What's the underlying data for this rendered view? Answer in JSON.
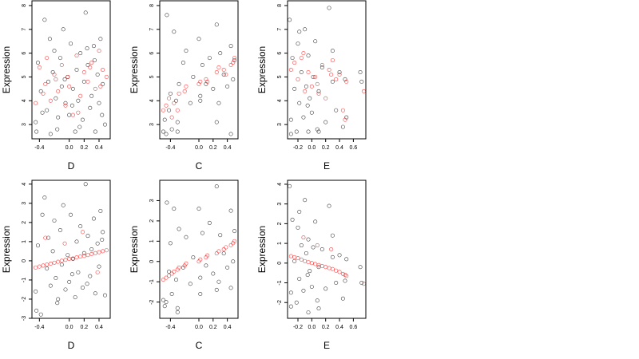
{
  "figure": {
    "title": ""
  },
  "colors": {
    "black": "#000000",
    "red": "#ff0000",
    "background": "#ffffff"
  },
  "chart_data": [
    {
      "type": "scatter",
      "xlabel": "D",
      "ylabel": "Expression",
      "xlim": [
        -0.5,
        0.55
      ],
      "ylim": [
        2.4,
        8.2
      ],
      "xticks": [
        -0.4,
        0.0,
        0.2,
        0.4
      ],
      "xtick_labels": [
        "-0.4",
        "0.0",
        "0.2",
        "0.4"
      ],
      "yticks": [
        3,
        4,
        5,
        6,
        7,
        8
      ],
      "ytick_labels": [
        "3",
        "4",
        "5",
        "6",
        "7",
        "8"
      ],
      "series": [
        {
          "color": "black",
          "x": [
            -0.45,
            -0.42,
            -0.38,
            -0.33,
            -0.3,
            -0.28,
            -0.25,
            -0.22,
            -0.2,
            -0.18,
            -0.15,
            -0.12,
            -0.1,
            -0.08,
            -0.05,
            -0.02,
            0.0,
            0.02,
            0.05,
            0.08,
            0.1,
            0.12,
            0.15,
            0.18,
            0.2,
            0.22,
            0.25,
            0.28,
            0.3,
            0.33,
            0.35,
            0.38,
            0.4,
            0.42,
            0.45,
            0.48,
            -0.44,
            -0.36,
            -0.26,
            -0.16,
            -0.06,
            0.04,
            0.14,
            0.24,
            0.34,
            0.44
          ],
          "y": [
            3.1,
            5.6,
            4.4,
            7.4,
            3.6,
            4.8,
            2.6,
            5.2,
            6.1,
            4.1,
            3.3,
            5.8,
            4.6,
            7.0,
            3.9,
            5.0,
            3.4,
            6.4,
            4.5,
            2.7,
            5.3,
            4.0,
            6.0,
            3.2,
            4.8,
            7.7,
            5.5,
            3.7,
            4.2,
            6.3,
            2.7,
            5.1,
            3.9,
            6.6,
            4.7,
            3.0,
            2.7,
            3.5,
            6.6,
            2.8,
            4.9,
            3.8,
            2.9,
            6.2,
            5.7,
            3.4
          ]
        },
        {
          "color": "red",
          "x": [
            -0.45,
            -0.4,
            -0.35,
            -0.3,
            -0.25,
            -0.2,
            -0.15,
            -0.1,
            -0.05,
            0.0,
            0.05,
            0.1,
            0.15,
            0.2,
            0.25,
            0.3,
            0.35,
            0.4,
            0.45,
            0.5,
            -0.32,
            -0.18,
            -0.02,
            0.12,
            0.28,
            0.42
          ],
          "y": [
            3.9,
            5.4,
            4.3,
            5.8,
            4.0,
            5.1,
            4.4,
            5.5,
            3.8,
            4.6,
            3.4,
            5.9,
            4.2,
            5.2,
            4.8,
            5.6,
            4.5,
            6.1,
            5.3,
            5.0,
            4.7,
            4.9,
            5.0,
            3.5,
            5.4,
            4.6
          ]
        }
      ]
    },
    {
      "type": "scatter",
      "xlabel": "C",
      "ylabel": "Expression",
      "xlim": [
        -0.55,
        0.55
      ],
      "ylim": [
        2.4,
        8.2
      ],
      "xticks": [
        -0.4,
        0.0,
        0.2,
        0.4
      ],
      "xtick_labels": [
        "-0.4",
        "0.0",
        "0.2",
        "0.4"
      ],
      "yticks": [
        3,
        4,
        5,
        6,
        7,
        8
      ],
      "ytick_labels": [
        "3",
        "4",
        "5",
        "6",
        "7",
        "8"
      ],
      "series": [
        {
          "color": "black",
          "x": [
            -0.5,
            -0.48,
            -0.45,
            -0.42,
            -0.4,
            -0.38,
            -0.35,
            -0.32,
            -0.3,
            -0.28,
            -0.22,
            -0.18,
            -0.12,
            -0.08,
            0.0,
            0.02,
            0.05,
            0.1,
            0.15,
            0.2,
            0.25,
            0.28,
            0.3,
            0.35,
            0.4,
            0.45,
            0.48,
            0.5,
            -0.46,
            -0.3,
            0.02,
            0.25,
            0.45
          ],
          "y": [
            2.7,
            3.2,
            7.6,
            3.6,
            4.3,
            2.8,
            6.9,
            4.0,
            3.1,
            4.7,
            5.6,
            6.1,
            3.9,
            5.0,
            6.6,
            4.2,
            5.5,
            4.7,
            5.8,
            4.5,
            7.2,
            3.9,
            6.0,
            5.1,
            4.6,
            6.3,
            4.9,
            5.7,
            2.6,
            2.7,
            4.0,
            3.1,
            2.6
          ]
        },
        {
          "color": "red",
          "x": [
            -0.5,
            -0.46,
            -0.42,
            -0.38,
            -0.35,
            -0.3,
            -0.28,
            -0.2,
            -0.18,
            0.0,
            0.02,
            0.1,
            0.12,
            0.25,
            0.28,
            0.35,
            0.38,
            0.45,
            0.48,
            0.5
          ],
          "y": [
            3.6,
            3.8,
            4.1,
            3.3,
            3.9,
            3.6,
            4.3,
            4.4,
            4.6,
            4.7,
            4.8,
            4.9,
            4.8,
            5.2,
            5.4,
            5.3,
            5.1,
            5.5,
            5.6,
            5.8
          ]
        }
      ]
    },
    {
      "type": "scatter",
      "xlabel": "E",
      "ylabel": "Expression",
      "xlim": [
        -0.35,
        0.78
      ],
      "ylim": [
        2.4,
        8.2
      ],
      "xticks": [
        -0.2,
        0.0,
        0.2,
        0.4,
        0.6
      ],
      "xtick_labels": [
        "-0.2",
        "0.0",
        "0.2",
        "0.4",
        "0.6"
      ],
      "yticks": [
        3,
        4,
        5,
        6,
        7,
        8
      ],
      "ytick_labels": [
        "3",
        "4",
        "5",
        "6",
        "7",
        "8"
      ],
      "series": [
        {
          "color": "black",
          "x": [
            -0.32,
            -0.3,
            -0.28,
            -0.25,
            -0.22,
            -0.2,
            -0.18,
            -0.15,
            -0.12,
            -0.1,
            -0.08,
            -0.05,
            -0.05,
            -0.03,
            0.0,
            0.02,
            0.05,
            0.08,
            0.1,
            0.15,
            0.2,
            0.25,
            0.3,
            0.35,
            0.4,
            0.45,
            0.48,
            0.5,
            -0.3,
            -0.18,
            -0.06,
            0.1,
            0.3,
            0.7,
            0.72
          ],
          "y": [
            7.4,
            3.2,
            5.8,
            4.5,
            2.7,
            6.4,
            3.9,
            5.2,
            3.3,
            7.0,
            4.6,
            2.7,
            5.9,
            4.1,
            3.5,
            5.0,
            6.5,
            2.8,
            4.4,
            5.4,
            3.1,
            7.9,
            4.8,
            3.6,
            5.2,
            2.9,
            4.9,
            3.3,
            2.6,
            6.9,
            3.8,
            2.7,
            6.1,
            5.2,
            4.8
          ]
        },
        {
          "color": "red",
          "x": [
            -0.3,
            -0.25,
            -0.2,
            -0.15,
            -0.1,
            -0.05,
            0.0,
            0.05,
            0.1,
            0.15,
            0.2,
            0.25,
            0.3,
            0.35,
            0.4,
            0.45,
            0.48,
            0.5,
            0.75,
            -0.12,
            0.08,
            0.28
          ],
          "y": [
            5.3,
            5.6,
            4.9,
            5.8,
            4.4,
            5.2,
            4.6,
            5.0,
            4.3,
            5.5,
            4.1,
            5.3,
            5.7,
            4.9,
            5.1,
            3.6,
            3.2,
            4.8,
            4.4,
            6.0,
            4.7,
            5.1
          ]
        }
      ]
    },
    {
      "type": "scatter",
      "xlabel": "D",
      "ylabel": "Expression",
      "xlim": [
        -0.5,
        0.55
      ],
      "ylim": [
        -3.0,
        4.2
      ],
      "xticks": [
        -0.4,
        0.0,
        0.2,
        0.4
      ],
      "xtick_labels": [
        "-0.4",
        "0.0",
        "0.2",
        "0.4"
      ],
      "yticks": [
        -3,
        -2,
        -1,
        0,
        1,
        2,
        3,
        4
      ],
      "ytick_labels": [
        "-3",
        "-2",
        "-1",
        "0",
        "1",
        "2",
        "3",
        "4"
      ],
      "series": [
        {
          "color": "black",
          "x": [
            -0.45,
            -0.42,
            -0.38,
            -0.33,
            -0.3,
            -0.28,
            -0.25,
            -0.22,
            -0.2,
            -0.18,
            -0.15,
            -0.12,
            -0.1,
            -0.08,
            -0.05,
            -0.02,
            0.0,
            0.02,
            0.05,
            0.08,
            0.1,
            0.12,
            0.15,
            0.18,
            0.2,
            0.22,
            0.25,
            0.28,
            0.3,
            0.33,
            0.35,
            0.38,
            0.4,
            0.42,
            0.45,
            0.48,
            -0.44,
            -0.36,
            -0.16,
            0.04,
            0.24,
            0.44
          ],
          "y": [
            -1.6,
            0.8,
            -2.8,
            3.3,
            -0.4,
            1.2,
            -1.3,
            0.5,
            2.1,
            -0.9,
            -2.0,
            1.6,
            -0.2,
            2.9,
            -1.5,
            0.3,
            -1.1,
            2.4,
            0.1,
            -1.9,
            1.0,
            -0.6,
            1.8,
            -1.4,
            0.4,
            4.0,
            1.3,
            -0.8,
            0.6,
            2.2,
            -1.7,
            0.9,
            -0.3,
            2.6,
            1.5,
            -1.8,
            -2.6,
            2.4,
            -2.2,
            -0.7,
            -1.2,
            1.1
          ]
        },
        {
          "color": "red",
          "x": [
            -0.45,
            -0.4,
            -0.35,
            -0.3,
            -0.25,
            -0.2,
            -0.15,
            -0.1,
            -0.05,
            0.0,
            0.05,
            0.1,
            0.15,
            0.2,
            0.25,
            0.3,
            0.35,
            0.4,
            0.45,
            0.5,
            -0.32,
            -0.06,
            0.18,
            0.38
          ],
          "y": [
            -0.35,
            -0.3,
            -0.25,
            -0.2,
            -0.15,
            -0.1,
            -0.05,
            0.0,
            0.05,
            0.1,
            0.12,
            0.18,
            0.22,
            0.25,
            0.3,
            0.35,
            0.4,
            0.45,
            0.5,
            0.55,
            1.2,
            0.9,
            1.5,
            -0.6
          ]
        }
      ]
    },
    {
      "type": "scatter",
      "xlabel": "C",
      "ylabel": "Expression",
      "xlim": [
        -0.55,
        0.55
      ],
      "ylim": [
        -2.8,
        4.0
      ],
      "xticks": [
        -0.4,
        0.0,
        0.2,
        0.4
      ],
      "xtick_labels": [
        "-0.4",
        "0.0",
        "0.2",
        "0.4"
      ],
      "yticks": [
        -2,
        -1,
        0,
        1,
        2,
        3
      ],
      "ytick_labels": [
        "-2",
        "-1",
        "0",
        "1",
        "2",
        "3"
      ],
      "series": [
        {
          "color": "black",
          "x": [
            -0.5,
            -0.48,
            -0.45,
            -0.42,
            -0.4,
            -0.38,
            -0.35,
            -0.32,
            -0.3,
            -0.28,
            -0.22,
            -0.18,
            -0.12,
            -0.08,
            0.0,
            0.02,
            0.05,
            0.1,
            0.15,
            0.2,
            0.25,
            0.28,
            0.3,
            0.35,
            0.4,
            0.45,
            0.48,
            0.5,
            -0.46,
            -0.3,
            0.02,
            0.25,
            0.45
          ],
          "y": [
            -1.9,
            -2.2,
            2.9,
            -0.5,
            0.9,
            -1.6,
            2.6,
            -0.9,
            -2.5,
            1.6,
            -0.3,
            1.2,
            -1.1,
            0.2,
            2.6,
            -0.8,
            1.4,
            -0.2,
            1.9,
            -0.6,
            3.7,
            -1.0,
            1.3,
            0.4,
            -0.3,
            2.5,
            0.0,
            1.5,
            -2.0,
            -2.3,
            -1.6,
            -1.4,
            -1.3
          ]
        },
        {
          "color": "red",
          "x": [
            -0.5,
            -0.46,
            -0.42,
            -0.38,
            -0.35,
            -0.3,
            -0.28,
            -0.2,
            -0.18,
            0.0,
            0.02,
            0.1,
            0.12,
            0.25,
            0.28,
            0.35,
            0.38,
            0.45,
            0.48,
            0.5
          ],
          "y": [
            -0.9,
            -0.8,
            -0.7,
            -0.6,
            -0.5,
            -0.4,
            -0.3,
            -0.2,
            -0.1,
            0.0,
            0.1,
            0.2,
            0.3,
            0.4,
            0.5,
            0.6,
            0.7,
            0.8,
            0.9,
            1.0
          ]
        }
      ]
    },
    {
      "type": "scatter",
      "xlabel": "E",
      "ylabel": "Expression",
      "xlim": [
        -0.35,
        0.78
      ],
      "ylim": [
        -2.8,
        4.2
      ],
      "xticks": [
        -0.2,
        0.0,
        0.2,
        0.4,
        0.6
      ],
      "xtick_labels": [
        "-0.2",
        "0.0",
        "0.2",
        "0.4",
        "0.6"
      ],
      "yticks": [
        -2,
        -1,
        0,
        1,
        2,
        3,
        4
      ],
      "ytick_labels": [
        "-2",
        "-1",
        "0",
        "1",
        "2",
        "3",
        "4"
      ],
      "series": [
        {
          "color": "black",
          "x": [
            -0.32,
            -0.3,
            -0.28,
            -0.25,
            -0.22,
            -0.2,
            -0.18,
            -0.15,
            -0.12,
            -0.1,
            -0.08,
            -0.05,
            -0.05,
            -0.03,
            0.0,
            0.02,
            0.05,
            0.08,
            0.1,
            0.15,
            0.2,
            0.25,
            0.3,
            0.35,
            0.4,
            0.45,
            0.48,
            0.5,
            -0.3,
            -0.18,
            -0.06,
            0.1,
            0.3,
            0.7,
            0.72
          ],
          "y": [
            3.9,
            -1.5,
            2.2,
            0.1,
            -2.0,
            1.8,
            -0.8,
            0.9,
            -1.4,
            3.2,
            0.5,
            -2.5,
            1.2,
            -0.4,
            -1.2,
            0.8,
            2.1,
            -1.9,
            -0.2,
            0.7,
            -1.3,
            2.9,
            0.3,
            -1.0,
            0.4,
            -1.8,
            -0.9,
            0.2,
            -2.2,
            2.6,
            -0.6,
            -2.3,
            1.4,
            -0.2,
            -1.0
          ]
        },
        {
          "color": "red",
          "x": [
            -0.3,
            -0.25,
            -0.2,
            -0.15,
            -0.1,
            -0.05,
            0.0,
            0.05,
            0.1,
            0.15,
            0.2,
            0.25,
            0.3,
            0.35,
            0.4,
            0.45,
            0.48,
            0.5,
            0.75,
            -0.12,
            0.08,
            0.28
          ],
          "y": [
            0.35,
            0.3,
            0.25,
            0.18,
            0.1,
            0.05,
            0.0,
            -0.05,
            -0.1,
            -0.15,
            -0.2,
            -0.25,
            -0.3,
            -0.38,
            -0.45,
            -0.55,
            -0.6,
            -0.65,
            -1.05,
            1.3,
            0.9,
            0.7
          ]
        }
      ]
    }
  ]
}
